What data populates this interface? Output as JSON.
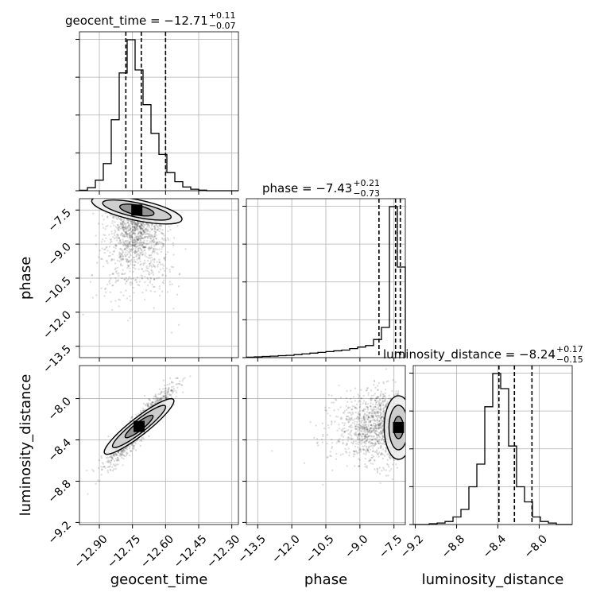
{
  "chart_data": {
    "type": "corner",
    "params": [
      "geocent_time",
      "phase",
      "luminosity_distance"
    ],
    "axis_labels": {
      "geocent_time": "geocent_time",
      "phase": "phase",
      "luminosity_distance": "luminosity_distance"
    },
    "titles": [
      {
        "param": "geocent_time",
        "text": "geocent_time = −12.71",
        "upper": "+0.11",
        "lower": "−0.07"
      },
      {
        "param": "phase",
        "text": "phase = −7.43",
        "upper": "+0.21",
        "lower": "−0.73"
      },
      {
        "param": "luminosity_distance",
        "text": "luminosity_distance = −8.24",
        "upper": "+0.17",
        "lower": "−0.15"
      }
    ],
    "ranges": {
      "geocent_time": [
        -12.99,
        -12.27
      ],
      "phase": [
        -14.0,
        -7.0
      ],
      "luminosity_distance": [
        -9.22,
        -7.68
      ]
    },
    "ticks": {
      "geocent_time": [
        -12.9,
        -12.75,
        -12.6,
        -12.45,
        -12.3
      ],
      "phase": [
        -13.5,
        -12.0,
        -10.5,
        -9.0,
        -7.5
      ],
      "luminosity_distance": [
        -9.2,
        -8.8,
        -8.4,
        -8.0
      ]
    },
    "tick_labels": {
      "geocent_time": [
        "−12.90",
        "−12.75",
        "−12.60",
        "−12.45",
        "−12.30"
      ],
      "phase": [
        "−13.5",
        "−12.0",
        "−10.5",
        "−9.0",
        "−7.5"
      ],
      "luminosity_distance": [
        "−9.2",
        "−8.8",
        "−8.4",
        "−8.0"
      ]
    },
    "quantile_lines": {
      "geocent_time": [
        -12.78,
        -12.71,
        -12.6
      ],
      "phase": [
        -8.16,
        -7.43,
        -7.22
      ],
      "luminosity_distance": [
        -8.39,
        -8.24,
        -8.07
      ]
    },
    "histograms": {
      "geocent_time": {
        "edges": [
          -12.99,
          -12.954,
          -12.918,
          -12.882,
          -12.846,
          -12.81,
          -12.774,
          -12.738,
          -12.702,
          -12.666,
          -12.63,
          -12.594,
          -12.558,
          -12.522,
          -12.486,
          -12.45,
          -12.414,
          -12.378,
          -12.342,
          -12.306,
          -12.27
        ],
        "counts": [
          0.3,
          2,
          7,
          18,
          47,
          78,
          100,
          80,
          57,
          38,
          24,
          12,
          6,
          2.5,
          1,
          0.4,
          0,
          0,
          0,
          0
        ]
      },
      "phase": {
        "edges": [
          -14.0,
          -13.65,
          -13.3,
          -12.95,
          -12.6,
          -12.25,
          -11.9,
          -11.55,
          -11.2,
          -10.85,
          -10.5,
          -10.15,
          -9.8,
          -9.45,
          -9.1,
          -8.75,
          -8.4,
          -8.05,
          -7.7,
          -7.35,
          -7.0
        ],
        "counts": [
          0.3,
          0.5,
          0.8,
          1,
          1.3,
          1.5,
          2,
          2.5,
          3,
          3.5,
          4,
          4.5,
          5,
          6,
          7,
          8,
          12,
          20,
          100,
          60
        ]
      },
      "luminosity_distance": {
        "edges": [
          -9.22,
          -9.143,
          -9.066,
          -8.989,
          -8.912,
          -8.835,
          -8.758,
          -8.681,
          -8.604,
          -8.527,
          -8.45,
          -8.373,
          -8.296,
          -8.219,
          -8.142,
          -8.065,
          -7.988,
          -7.911,
          -7.834,
          -7.757,
          -7.68
        ],
        "counts": [
          0,
          0,
          0.5,
          1,
          2,
          5,
          10,
          25,
          40,
          78,
          100,
          90,
          52,
          25,
          15,
          5,
          2,
          1,
          0,
          0
        ]
      }
    },
    "density_centers": [
      {
        "x": "geocent_time",
        "y": "phase",
        "cx": -12.73,
        "cy": -7.5
      },
      {
        "x": "geocent_time",
        "y": "luminosity_distance",
        "cx": -12.72,
        "cy": -8.27
      },
      {
        "x": "phase",
        "y": "luminosity_distance",
        "cx": -7.3,
        "cy": -8.28
      }
    ]
  }
}
